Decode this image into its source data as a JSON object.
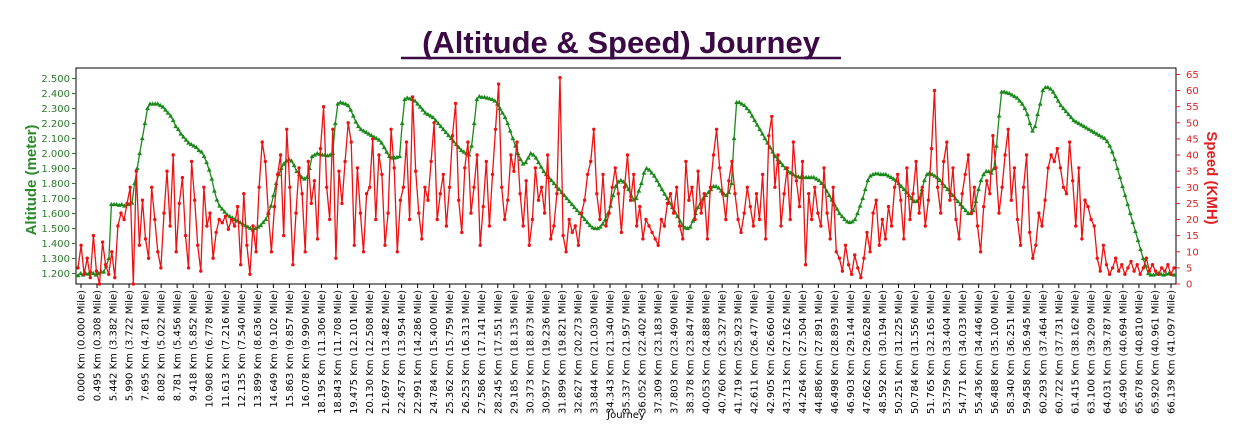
{
  "chart_data": {
    "type": "line",
    "title": "(Altitude & Speed) Journey",
    "xlabel": "Journey",
    "ylabel_left": "Altitude (meter)",
    "ylabel_right": "Speed (KMH)",
    "ylim_left": [
      1130,
      2570
    ],
    "ylim_right": [
      0,
      67
    ],
    "yticks_left": [
      "1.200",
      "1.300",
      "1.400",
      "1.500",
      "1.600",
      "1.700",
      "1.800",
      "1.900",
      "2.000",
      "2.100",
      "2.200",
      "2.300",
      "2.400",
      "2.500"
    ],
    "yticks_right": [
      "0",
      "5",
      "10",
      "15",
      "20",
      "25",
      "30",
      "35",
      "40",
      "45",
      "50",
      "55",
      "60",
      "65"
    ],
    "xticks": [
      "0.000 Km (0.000 Mile)",
      "0.495 Km (0.308 Mile)",
      "5.442 Km (3.382 Mile)",
      "5.990 Km (3.722 Mile)",
      "7.695 Km (4.781 Mile)",
      "8.082 Km (5.022 Mile)",
      "8.781 Km (5.456 Mile)",
      "9.418 Km (5.852 Mile)",
      "10.908 Km (6.778 Mile)",
      "11.613 Km (7.216 Mile)",
      "12.135 Km (7.540 Mile)",
      "13.899 Km (8.636 Mile)",
      "14.649 Km (9.102 Mile)",
      "15.863 Km (9.857 Mile)",
      "16.078 Km (9.990 Mile)",
      "18.195 Km (11.306 Mile)",
      "18.843 Km (11.708 Mile)",
      "19.475 Km (12.101 Mile)",
      "20.130 Km (12.508 Mile)",
      "21.697 Km (13.482 Mile)",
      "22.457 Km (13.954 Mile)",
      "22.991 Km (14.286 Mile)",
      "24.784 Km (15.400 Mile)",
      "25.362 Km (15.759 Mile)",
      "26.253 Km (16.313 Mile)",
      "27.586 Km (17.141 Mile)",
      "28.245 Km (17.551 Mile)",
      "29.185 Km (18.135 Mile)",
      "30.373 Km (18.873 Mile)",
      "30.957 Km (19.236 Mile)",
      "31.899 Km (19.821 Mile)",
      "32.627 Km (20.273 Mile)",
      "33.844 Km (21.030 Mile)",
      "34.343 Km (21.340 Mile)",
      "35.337 Km (21.957 Mile)",
      "36.052 Km (22.402 Mile)",
      "37.309 Km (23.183 Mile)",
      "37.803 Km (23.490 Mile)",
      "38.378 Km (23.847 Mile)",
      "40.053 Km (24.888 Mile)",
      "40.760 Km (25.327 Mile)",
      "41.719 Km (25.923 Mile)",
      "42.611 Km (26.477 Mile)",
      "42.905 Km (26.660 Mile)",
      "43.713 Km (27.162 Mile)",
      "44.264 Km (27.504 Mile)",
      "44.886 Km (27.891 Mile)",
      "46.498 Km (28.893 Mile)",
      "46.903 Km (29.144 Mile)",
      "47.662 Km (29.628 Mile)",
      "48.592 Km (30.194 Mile)",
      "50.251 Km (31.225 Mile)",
      "50.784 Km (31.556 Mile)",
      "51.765 Km (32.165 Mile)",
      "53.759 Km (33.404 Mile)",
      "54.771 Km (34.033 Mile)",
      "55.436 Km (34.446 Mile)",
      "56.488 Km (35.100 Mile)",
      "58.340 Km (36.251 Mile)",
      "59.458 Km (36.945 Mile)",
      "60.293 Km (37.464 Mile)",
      "60.722 Km (37.731 Mile)",
      "61.415 Km (38.162 Mile)",
      "63.100 Km (39.209 Mile)",
      "64.031 Km (39.787 Mile)",
      "65.490 Km (40.694 Mile)",
      "65.678 Km (40.810 Mile)",
      "65.920 Km (40.961 Mile)",
      "66.139 Km (41.097 Mile)"
    ],
    "series": [
      {
        "name": "",
        "axis": "left",
        "color": "#1a8a1a",
        "values": [
          1185,
          1200,
          1190,
          1200,
          1195,
          1210,
          1200,
          1190,
          1200,
          1210,
          1210,
          1250,
          1300,
          1660,
          1660,
          1660,
          1655,
          1660,
          1650,
          1660,
          1660,
          1670,
          1800,
          1900,
          2000,
          2100,
          2200,
          2300,
          2330,
          2330,
          2330,
          2330,
          2320,
          2310,
          2290,
          2270,
          2250,
          2220,
          2180,
          2160,
          2130,
          2110,
          2090,
          2070,
          2060,
          2050,
          2040,
          2020,
          2010,
          1980,
          1940,
          1890,
          1830,
          1750,
          1690,
          1650,
          1630,
          1610,
          1590,
          1580,
          1570,
          1560,
          1550,
          1540,
          1530,
          1520,
          1510,
          1500,
          1490,
          1500,
          1510,
          1520,
          1540,
          1560,
          1600,
          1650,
          1720,
          1800,
          1860,
          1900,
          1930,
          1950,
          1960,
          1950,
          1920,
          1880,
          1860,
          1840,
          1830,
          1840,
          1900,
          1980,
          1990,
          2000,
          1995,
          1990,
          1990,
          1985,
          1990,
          2000,
          2200,
          2330,
          2340,
          2335,
          2330,
          2320,
          2290,
          2250,
          2210,
          2180,
          2160,
          2150,
          2140,
          2130,
          2120,
          2110,
          2100,
          2090,
          2070,
          2040,
          2010,
          1980,
          1970,
          1970,
          1975,
          1980,
          2200,
          2360,
          2370,
          2365,
          2360,
          2350,
          2330,
          2310,
          2290,
          2270,
          2260,
          2250,
          2240,
          2220,
          2200,
          2180,
          2160,
          2140,
          2120,
          2100,
          2080,
          2060,
          2040,
          2020,
          2010,
          2000,
          1990,
          2050,
          2200,
          2360,
          2380,
          2375,
          2375,
          2370,
          2365,
          2360,
          2350,
          2330,
          2300,
          2270,
          2240,
          2200,
          2150,
          2100,
          2050,
          2000,
          1960,
          1930,
          1940,
          1970,
          2000,
          1990,
          1970,
          1940,
          1910,
          1880,
          1860,
          1840,
          1820,
          1800,
          1780,
          1760,
          1740,
          1720,
          1700,
          1680,
          1660,
          1640,
          1620,
          1600,
          1580,
          1560,
          1540,
          1520,
          1505,
          1500,
          1500,
          1510,
          1530,
          1560,
          1600,
          1650,
          1720,
          1780,
          1810,
          1820,
          1810,
          1790,
          1760,
          1720,
          1690,
          1700,
          1750,
          1800,
          1870,
          1900,
          1890,
          1870,
          1850,
          1820,
          1790,
          1760,
          1730,
          1700,
          1670,
          1640,
          1610,
          1580,
          1550,
          1520,
          1505,
          1500,
          1510,
          1550,
          1600,
          1640,
          1670,
          1700,
          1720,
          1740,
          1760,
          1780,
          1780,
          1770,
          1750,
          1730,
          1720,
          1740,
          1800,
          2100,
          2340,
          2340,
          2330,
          2320,
          2300,
          2280,
          2250,
          2220,
          2190,
          2160,
          2130,
          2100,
          2070,
          2040,
          2010,
          1980,
          1960,
          1940,
          1920,
          1900,
          1880,
          1870,
          1860,
          1850,
          1845,
          1840,
          1840,
          1840,
          1840,
          1840,
          1840,
          1830,
          1820,
          1800,
          1780,
          1750,
          1720,
          1690,
          1660,
          1630,
          1600,
          1580,
          1560,
          1545,
          1540,
          1545,
          1560,
          1600,
          1650,
          1700,
          1760,
          1820,
          1850,
          1860,
          1865,
          1865,
          1860,
          1860,
          1860,
          1850,
          1840,
          1830,
          1820,
          1800,
          1780,
          1760,
          1740,
          1720,
          1700,
          1680,
          1680,
          1700,
          1760,
          1820,
          1860,
          1870,
          1860,
          1850,
          1840,
          1820,
          1800,
          1780,
          1760,
          1740,
          1720,
          1700,
          1680,
          1660,
          1640,
          1620,
          1600,
          1600,
          1620,
          1680,
          1760,
          1820,
          1860,
          1880,
          1880,
          1870,
          1900,
          2050,
          2250,
          2410,
          2410,
          2405,
          2400,
          2390,
          2380,
          2370,
          2350,
          2330,
          2300,
          2260,
          2200,
          2150,
          2180,
          2260,
          2330,
          2420,
          2440,
          2440,
          2430,
          2410,
          2380,
          2350,
          2320,
          2300,
          2280,
          2260,
          2240,
          2220,
          2210,
          2200,
          2190,
          2180,
          2170,
          2160,
          2150,
          2140,
          2130,
          2120,
          2110,
          2100,
          2080,
          2050,
          2010,
          1960,
          1900,
          1840,
          1780,
          1720,
          1660,
          1600,
          1540,
          1480,
          1420,
          1360,
          1300,
          1250,
          1200,
          1190,
          1190,
          1195,
          1200,
          1195,
          1190,
          1195,
          1200,
          1195,
          1190
        ]
      },
      {
        "name": "",
        "axis": "right",
        "color": "#ee1111",
        "values": [
          5,
          12,
          3,
          8,
          2,
          15,
          4,
          0,
          13,
          6,
          3,
          10,
          2,
          18,
          22,
          20,
          25,
          30,
          0,
          35,
          12,
          26,
          14,
          8,
          30,
          20,
          10,
          5,
          22,
          35,
          18,
          40,
          10,
          25,
          33,
          15,
          5,
          38,
          26,
          12,
          4,
          30,
          18,
          22,
          8,
          16,
          20,
          19,
          21,
          17,
          20,
          18,
          24,
          6,
          28,
          12,
          3,
          18,
          10,
          30,
          44,
          38,
          22,
          10,
          24,
          34,
          40,
          15,
          48,
          30,
          6,
          22,
          36,
          28,
          10,
          38,
          25,
          32,
          14,
          42,
          55,
          30,
          20,
          48,
          8,
          35,
          25,
          38,
          50,
          44,
          12,
          36,
          22,
          10,
          28,
          30,
          45,
          20,
          40,
          34,
          12,
          22,
          48,
          36,
          10,
          26,
          30,
          44,
          20,
          58,
          35,
          22,
          14,
          30,
          26,
          38,
          50,
          20,
          28,
          34,
          18,
          30,
          46,
          56,
          26,
          16,
          36,
          44,
          22,
          30,
          40,
          12,
          24,
          38,
          18,
          34,
          48,
          62,
          30,
          20,
          26,
          40,
          35,
          44,
          28,
          18,
          32,
          12,
          20,
          36,
          26,
          30,
          22,
          40,
          14,
          18,
          28,
          64,
          15,
          10,
          20,
          16,
          18,
          12,
          22,
          26,
          34,
          38,
          48,
          28,
          20,
          34,
          18,
          22,
          30,
          36,
          28,
          16,
          30,
          40,
          26,
          34,
          18,
          24,
          14,
          20,
          18,
          16,
          14,
          12,
          20,
          18,
          25,
          28,
          22,
          30,
          18,
          14,
          38,
          26,
          30,
          20,
          35,
          22,
          28,
          14,
          30,
          40,
          48,
          36,
          28,
          20,
          32,
          38,
          28,
          20,
          16,
          22,
          30,
          24,
          18,
          28,
          20,
          34,
          14,
          46,
          52,
          30,
          40,
          18,
          28,
          36,
          20,
          44,
          32,
          24,
          38,
          6,
          28,
          20,
          30,
          22,
          18,
          36,
          22,
          14,
          30,
          10,
          8,
          4,
          12,
          6,
          3,
          9,
          5,
          2,
          8,
          16,
          10,
          22,
          26,
          12,
          20,
          14,
          24,
          18,
          30,
          34,
          26,
          14,
          36,
          20,
          28,
          38,
          22,
          30,
          18,
          26,
          42,
          60,
          30,
          22,
          38,
          44,
          26,
          36,
          20,
          14,
          28,
          34,
          40,
          22,
          30,
          18,
          10,
          24,
          32,
          28,
          46,
          36,
          22,
          30,
          40,
          48,
          26,
          36,
          20,
          12,
          30,
          40,
          16,
          8,
          12,
          22,
          18,
          26,
          36,
          40,
          38,
          42,
          36,
          30,
          28,
          44,
          32,
          18,
          36,
          14,
          26,
          24,
          20,
          18,
          8,
          4,
          12,
          6,
          3,
          5,
          8,
          4,
          6,
          3,
          5,
          7,
          4,
          6,
          3,
          5,
          8,
          4,
          6,
          4,
          3,
          5,
          4,
          6,
          3,
          5
        ]
      }
    ]
  }
}
